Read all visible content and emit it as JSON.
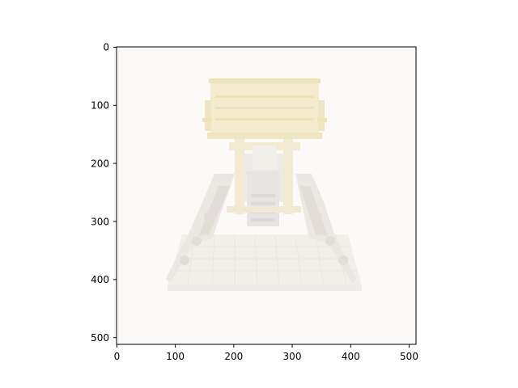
{
  "figure": {
    "image_subject": "Lego tracked vehicle with dump bed, faded render",
    "background_color": "#ffffff",
    "axes_color": "#000000"
  },
  "axes": {
    "x_ticks": [
      "0",
      "100",
      "200",
      "300",
      "400",
      "500"
    ],
    "y_ticks": [
      "0",
      "100",
      "200",
      "300",
      "400",
      "500"
    ],
    "x_range": [
      0,
      512
    ],
    "y_range": [
      512,
      0
    ]
  },
  "colors": {
    "image_background": "#fbfaf8",
    "bed": "#f4ecce",
    "bed_edge": "#ede2b8",
    "chassis": "#f0efea",
    "tracks": "#ebe7e2",
    "tracks_dark": "#e3ddd7",
    "frame_grey": "#e6e5e3",
    "yellow_parts": "#f2ead2"
  }
}
